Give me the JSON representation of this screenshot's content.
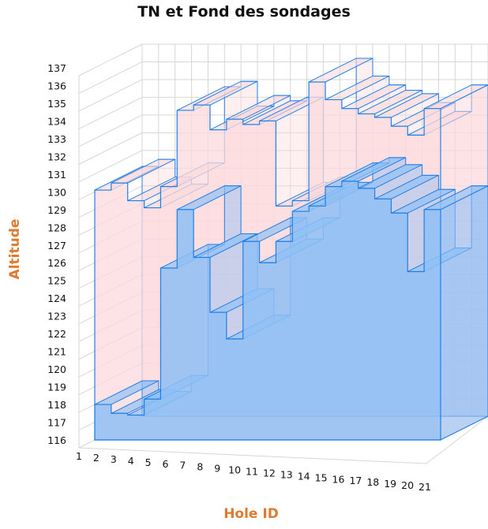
{
  "chart_data": {
    "type": "area",
    "title": "TN et Fond des sondages",
    "xlabel": "Hole ID",
    "ylabel": "Altitude",
    "ylim": [
      116,
      137
    ],
    "yticks": [
      116,
      117,
      118,
      119,
      120,
      121,
      122,
      123,
      124,
      125,
      126,
      127,
      128,
      129,
      130,
      131,
      132,
      133,
      134,
      135,
      136,
      137
    ],
    "categories": [
      1,
      2,
      3,
      4,
      5,
      6,
      7,
      8,
      9,
      10,
      11,
      12,
      13,
      14,
      15,
      16,
      17,
      18,
      19,
      20,
      21
    ],
    "series": [
      {
        "values": [
          130.1,
          130.5,
          129.5,
          129.1,
          130.3,
          134.6,
          134.9,
          133.5,
          134.1,
          133.8,
          134.0,
          129.2,
          129.5,
          136.2,
          135.2,
          134.7,
          134.4,
          134.2,
          133.7,
          133.2,
          134.7
        ]
      },
      {
        "values": [
          118.0,
          117.5,
          117.4,
          118.3,
          125.7,
          129.0,
          126.3,
          123.2,
          121.7,
          127.2,
          126.0,
          127.2,
          128.9,
          129.2,
          130.3,
          130.6,
          130.2,
          129.6,
          128.8,
          125.5,
          129.0
        ]
      }
    ],
    "colors": {
      "surface_fill": "#fcd9dc",
      "bottom_fill": "#8fbff5",
      "edge": "#1f7fe6",
      "axis_title": "#e07a2e"
    },
    "grid": true
  }
}
